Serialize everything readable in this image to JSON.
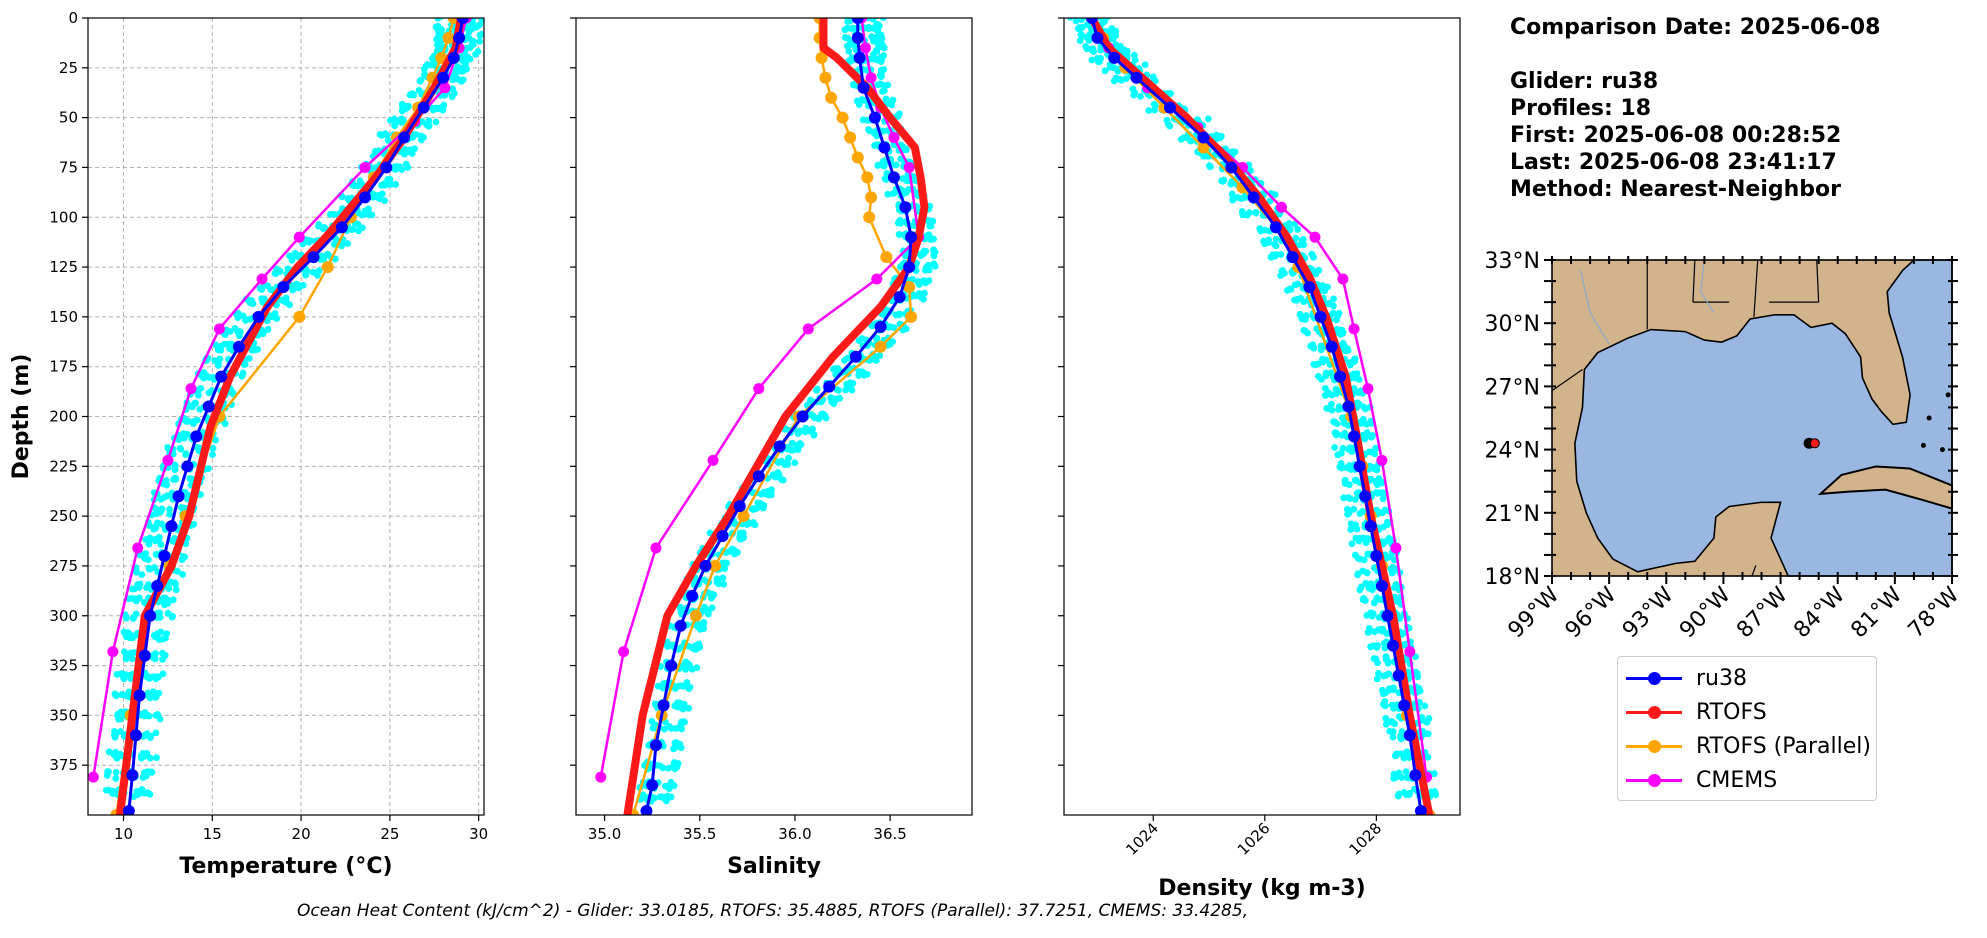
{
  "info": {
    "lines": [
      "Comparison Date: 2025-06-08",
      "",
      "Glider: ru38",
      "Profiles: 18",
      "First: 2025-06-08 00:28:52",
      "Last: 2025-06-08 23:41:17",
      "Method: Nearest-Neighbor"
    ]
  },
  "footer": {
    "text": "Ocean Heat Content (kJ/cm^2) - Glider: 33.0185,  RTOFS: 35.4885,  RTOFS (Parallel): 37.7251,  CMEMS: 33.4285,"
  },
  "legend": [
    {
      "label": "ru38",
      "color": "#0000ff"
    },
    {
      "label": "RTOFS",
      "color": "#ff1a1a"
    },
    {
      "label": "RTOFS (Parallel)",
      "color": "#ffa500"
    },
    {
      "label": "CMEMS",
      "color": "#ff00ff"
    }
  ],
  "colors": {
    "glider_points": "#00ffff",
    "ocean": "#9ab7e2",
    "land": "#d2b48c",
    "grid": "#b0b0b0"
  },
  "chart_data": [
    {
      "type": "line",
      "xlabel": "Temperature (°C)",
      "ylabel": "Depth (m)",
      "xlim": [
        8,
        30.3
      ],
      "ylim": [
        400,
        0
      ],
      "xticks": [
        10,
        15,
        20,
        25,
        30
      ],
      "yticks": [
        0,
        25,
        50,
        75,
        100,
        125,
        150,
        175,
        200,
        225,
        250,
        275,
        300,
        325,
        350,
        375
      ],
      "grid": true,
      "series": [
        {
          "name": "ru38",
          "x": [
            29.1,
            28.9,
            28.6,
            28.0,
            26.9,
            25.8,
            24.8,
            23.6,
            22.3,
            20.7,
            19.0,
            17.6,
            16.5,
            15.5,
            14.8,
            14.1,
            13.6,
            13.1,
            12.7,
            12.3,
            11.9,
            11.5,
            11.2,
            10.9,
            10.7,
            10.5,
            10.3
          ],
          "y": [
            0,
            10,
            20,
            30,
            45,
            60,
            75,
            90,
            105,
            120,
            135,
            150,
            165,
            180,
            195,
            210,
            225,
            240,
            255,
            270,
            285,
            300,
            320,
            340,
            360,
            380,
            398
          ]
        },
        {
          "name": "RTOFS",
          "x": [
            29.0,
            28.7,
            27.5,
            25.8,
            24.2,
            22.8,
            21.4,
            19.8,
            18.1,
            16.0,
            14.9,
            13.7,
            12.7,
            11.2,
            10.5,
            9.8
          ],
          "y": [
            0,
            15,
            35,
            60,
            80,
            95,
            110,
            125,
            145,
            180,
            205,
            250,
            275,
            300,
            350,
            400
          ]
        },
        {
          "name": "RTOFS (Parallel)",
          "x": [
            28.6,
            28.3,
            27.9,
            27.4,
            26.6,
            25.4,
            24.1,
            22.8,
            21.5,
            19.9,
            15.4,
            13.5,
            12.6,
            11.4,
            10.4,
            9.6
          ],
          "y": [
            0,
            10,
            20,
            30,
            45,
            60,
            80,
            100,
            125,
            150,
            200,
            250,
            275,
            300,
            350,
            400
          ]
        },
        {
          "name": "CMEMS",
          "x": [
            29.3,
            28.9,
            28.1,
            26.4,
            23.6,
            19.9,
            17.8,
            15.4,
            13.8,
            12.5,
            10.8,
            9.4,
            8.3
          ],
          "y": [
            0,
            15,
            35,
            52,
            75,
            110,
            131,
            156,
            186,
            222,
            266,
            318,
            381
          ]
        }
      ]
    },
    {
      "type": "line",
      "xlabel": "Salinity",
      "ylabel": "",
      "xlim": [
        34.85,
        36.93
      ],
      "ylim": [
        400,
        0
      ],
      "xticks": [
        35.0,
        35.5,
        36.0,
        36.5
      ],
      "grid": false,
      "series": [
        {
          "name": "ru38",
          "x": [
            36.33,
            36.33,
            36.34,
            36.36,
            36.42,
            36.47,
            36.52,
            36.58,
            36.61,
            36.6,
            36.55,
            36.45,
            36.32,
            36.18,
            36.04,
            35.92,
            35.81,
            35.71,
            35.62,
            35.53,
            35.46,
            35.4,
            35.35,
            35.31,
            35.27,
            35.25,
            35.22
          ],
          "y": [
            0,
            10,
            20,
            35,
            50,
            65,
            80,
            95,
            110,
            125,
            140,
            155,
            170,
            185,
            200,
            215,
            230,
            245,
            260,
            275,
            290,
            305,
            325,
            345,
            365,
            385,
            398
          ]
        },
        {
          "name": "RTOFS",
          "x": [
            36.15,
            36.15,
            36.15,
            36.22,
            36.38,
            36.5,
            36.63,
            36.66,
            36.68,
            36.65,
            36.6,
            36.45,
            36.2,
            35.95,
            35.65,
            35.48,
            35.33,
            35.2,
            35.12
          ],
          "y": [
            0,
            10,
            15,
            20,
            35,
            50,
            65,
            80,
            95,
            110,
            125,
            145,
            170,
            200,
            250,
            275,
            300,
            350,
            400
          ]
        },
        {
          "name": "RTOFS (Parallel)",
          "x": [
            36.13,
            36.13,
            36.14,
            36.16,
            36.19,
            36.25,
            36.29,
            36.33,
            36.38,
            36.4,
            36.39,
            36.48,
            36.6,
            36.61,
            36.45,
            36.02,
            35.73,
            35.58,
            35.48,
            35.3,
            35.15
          ],
          "y": [
            0,
            10,
            20,
            30,
            40,
            50,
            60,
            70,
            80,
            90,
            100,
            120,
            135,
            150,
            165,
            200,
            250,
            275,
            300,
            350,
            400
          ]
        },
        {
          "name": "CMEMS",
          "x": [
            36.35,
            36.37,
            36.4,
            36.45,
            36.52,
            36.6,
            36.65,
            36.43,
            36.07,
            35.81,
            35.57,
            35.27,
            35.1,
            34.98
          ],
          "y": [
            0,
            15,
            30,
            45,
            60,
            75,
            110,
            131,
            156,
            186,
            222,
            266,
            318,
            381
          ]
        }
      ]
    },
    {
      "type": "line",
      "xlabel": "Density (kg m-3)",
      "ylabel": "",
      "xlim": [
        1022.4,
        1029.5
      ],
      "ylim": [
        400,
        0
      ],
      "xticks": [
        1024,
        1026,
        1028
      ],
      "grid": false,
      "series": [
        {
          "name": "ru38",
          "x": [
            1022.9,
            1023.0,
            1023.3,
            1023.7,
            1024.3,
            1024.9,
            1025.4,
            1025.8,
            1026.2,
            1026.5,
            1026.8,
            1027.0,
            1027.2,
            1027.35,
            1027.5,
            1027.6,
            1027.7,
            1027.8,
            1027.9,
            1028.0,
            1028.1,
            1028.2,
            1028.3,
            1028.4,
            1028.5,
            1028.6,
            1028.7,
            1028.8
          ],
          "y": [
            0,
            10,
            20,
            30,
            45,
            60,
            75,
            90,
            105,
            120,
            135,
            150,
            165,
            180,
            195,
            210,
            225,
            240,
            255,
            270,
            285,
            300,
            315,
            330,
            345,
            360,
            380,
            398
          ]
        },
        {
          "name": "RTOFS",
          "x": [
            1022.9,
            1023.2,
            1023.8,
            1024.6,
            1025.3,
            1025.9,
            1026.4,
            1026.8,
            1027.1,
            1027.45,
            1027.65,
            1027.9,
            1028.1,
            1028.3,
            1028.6,
            1028.95
          ],
          "y": [
            0,
            15,
            30,
            50,
            70,
            90,
            110,
            130,
            150,
            180,
            210,
            250,
            275,
            300,
            350,
            400
          ]
        },
        {
          "name": "RTOFS (Parallel)",
          "x": [
            1022.9,
            1023.1,
            1023.5,
            1024.2,
            1024.9,
            1025.6,
            1026.2,
            1026.6,
            1027.55,
            1027.75,
            1027.9,
            1028.1,
            1028.55,
            1028.95
          ],
          "y": [
            0,
            10,
            25,
            45,
            65,
            85,
            105,
            125,
            200,
            225,
            250,
            275,
            350,
            400
          ]
        },
        {
          "name": "CMEMS",
          "x": [
            1022.9,
            1023.2,
            1023.9,
            1024.8,
            1025.6,
            1026.3,
            1026.9,
            1027.4,
            1027.6,
            1027.85,
            1028.1,
            1028.35,
            1028.6,
            1028.9
          ],
          "y": [
            0,
            15,
            35,
            55,
            75,
            95,
            110,
            131,
            156,
            186,
            222,
            266,
            318,
            381
          ]
        }
      ]
    },
    {
      "type": "map",
      "lon_range": [
        -99,
        -78
      ],
      "lat_range": [
        18,
        33
      ],
      "xticks": [
        "99°W",
        "96°W",
        "93°W",
        "90°W",
        "87°W",
        "84°W",
        "81°W",
        "78°W"
      ],
      "yticks": [
        "18°N",
        "21°N",
        "24°N",
        "27°N",
        "30°N",
        "33°N"
      ],
      "glider_position": {
        "lon": -85.5,
        "lat": 24.3
      },
      "rtofs_position": {
        "lon": -85.2,
        "lat": 24.3
      }
    }
  ]
}
